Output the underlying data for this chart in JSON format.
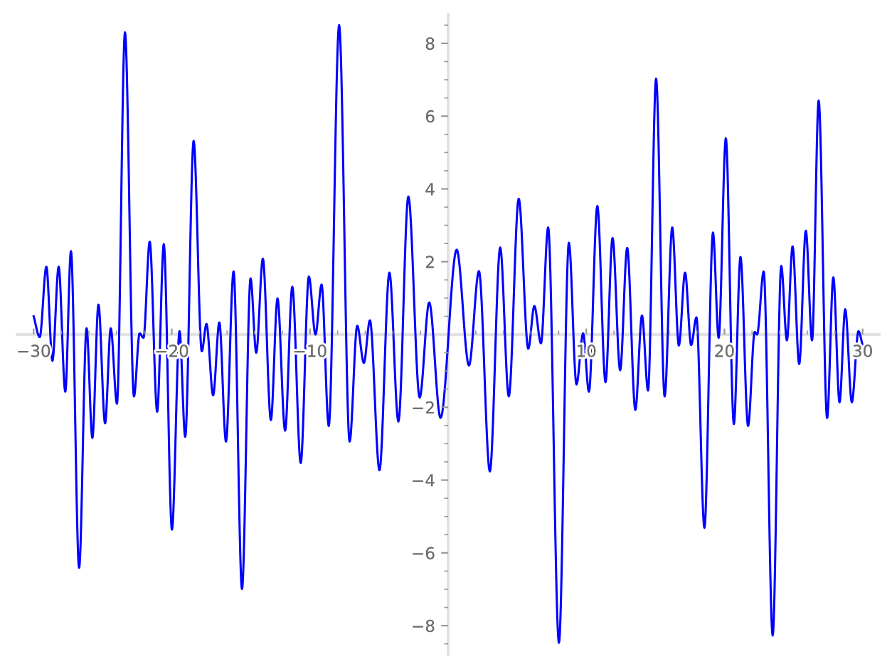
{
  "chart_data": {
    "type": "line",
    "color": "#0000ff",
    "line_style": "solid",
    "x": [
      -30,
      -29.56,
      -29.08,
      -28.64,
      -28.19,
      -27.71,
      -27.3,
      -26.71,
      -26.17,
      -25.75,
      -25.31,
      -24.83,
      -24.42,
      -23.97,
      -23.39,
      -22.74,
      -22.33,
      -22.05,
      -21.6,
      -21.06,
      -20.58,
      -19.99,
      -19.44,
      -19.03,
      -18.42,
      -17.83,
      -17.49,
      -17.01,
      -16.56,
      -16.08,
      -15.53,
      -14.92,
      -14.3,
      -13.89,
      -13.41,
      -12.83,
      -12.35,
      -11.8,
      -11.28,
      -10.67,
      -10.08,
      -9.6,
      -9.16,
      -8.64,
      -7.89,
      -7.13,
      -6.58,
      -6.1,
      -5.66,
      -4.97,
      -4.25,
      -3.6,
      -2.88,
      -2.06,
      -1.37,
      -0.55,
      0.62,
      1.51,
      2.23,
      3.02,
      3.77,
      4.39,
      5.11,
      5.8,
      6.24,
      6.72,
      7.24,
      8.02,
      8.74,
      9.29,
      9.77,
      10.19,
      10.8,
      11.39,
      11.9,
      12.45,
      12.96,
      13.55,
      14.03,
      14.47,
      15.05,
      15.67,
      16.22,
      16.7,
      17.15,
      17.59,
      17.97,
      18.55,
      19.17,
      19.58,
      20.1,
      20.68,
      21.16,
      21.71,
      22.19,
      22.36,
      22.84,
      23.49,
      24.11,
      24.52,
      24.93,
      25.41,
      25.89,
      26.34,
      26.82,
      27.43,
      27.88,
      28.33,
      28.74,
      29.22,
      29.7,
      30
    ],
    "values": [
      0.5,
      -0.07,
      1.86,
      -0.72,
      1.86,
      -1.57,
      2.29,
      -6.41,
      0.17,
      -2.84,
      0.82,
      -2.44,
      0.17,
      -1.9,
      8.3,
      -1.7,
      0.03,
      -0.09,
      2.55,
      -2.12,
      2.48,
      -5.36,
      0.09,
      -2.81,
      5.32,
      -0.46,
      0.29,
      -1.67,
      0.33,
      -2.94,
      1.73,
      -6.99,
      1.54,
      -0.5,
      2.08,
      -2.35,
      0.99,
      -2.64,
      1.31,
      -3.53,
      1.59,
      0.0,
      1.37,
      -2.51,
      8.5,
      -2.94,
      0.24,
      -0.78,
      0.39,
      -3.73,
      1.7,
      -2.39,
      3.79,
      -1.73,
      0.88,
      -2.29,
      2.33,
      -0.85,
      1.74,
      -3.76,
      2.39,
      -1.7,
      3.73,
      -0.39,
      0.78,
      -0.24,
      2.94,
      -8.47,
      2.52,
      -1.37,
      0.03,
      -1.57,
      3.53,
      -1.31,
      2.65,
      -0.98,
      2.38,
      -2.07,
      0.52,
      -1.54,
      7.03,
      -1.7,
      2.94,
      -0.3,
      1.7,
      -0.29,
      0.47,
      -5.31,
      2.8,
      -0.09,
      5.39,
      -2.46,
      2.13,
      -2.51,
      0.07,
      0.0,
      1.73,
      -8.27,
      1.88,
      -0.16,
      2.42,
      -0.81,
      2.85,
      -0.16,
      6.43,
      -2.29,
      1.57,
      -1.86,
      0.69,
      -1.86,
      0.09,
      -0.29
    ],
    "xlim": [
      -31.2,
      31.2
    ],
    "ylim": [
      -8.8,
      8.8
    ],
    "xticks": [
      {
        "value": -30,
        "label": "−30"
      },
      {
        "value": -28,
        "label": null
      },
      {
        "value": -26,
        "label": null
      },
      {
        "value": -24,
        "label": null
      },
      {
        "value": -22,
        "label": null
      },
      {
        "value": -20,
        "label": "−20"
      },
      {
        "value": -18,
        "label": null
      },
      {
        "value": -16,
        "label": null
      },
      {
        "value": -14,
        "label": null
      },
      {
        "value": -12,
        "label": null
      },
      {
        "value": -10,
        "label": "−10"
      },
      {
        "value": -8,
        "label": null
      },
      {
        "value": -6,
        "label": null
      },
      {
        "value": -4,
        "label": null
      },
      {
        "value": -2,
        "label": null
      },
      {
        "value": 2,
        "label": null
      },
      {
        "value": 4,
        "label": null
      },
      {
        "value": 6,
        "label": null
      },
      {
        "value": 8,
        "label": null
      },
      10,
      {
        "value": 12,
        "label": null
      },
      {
        "value": 14,
        "label": null
      },
      {
        "value": 16,
        "label": null
      },
      {
        "value": 18,
        "label": null
      },
      20,
      {
        "value": 22,
        "label": null
      },
      {
        "value": 24,
        "label": null
      },
      {
        "value": 26,
        "label": null
      },
      {
        "value": 28,
        "label": null
      },
      30
    ],
    "yticks": [
      {
        "value": -8.5,
        "label": null
      },
      {
        "value": -8,
        "label": "−8"
      },
      {
        "value": -7.5,
        "label": null
      },
      {
        "value": -7,
        "label": null
      },
      {
        "value": -6.5,
        "label": null
      },
      {
        "value": -6,
        "label": "−6"
      },
      {
        "value": -5.5,
        "label": null
      },
      {
        "value": -5,
        "label": null
      },
      {
        "value": -4.5,
        "label": null
      },
      {
        "value": -4,
        "label": "−4"
      },
      {
        "value": -3.5,
        "label": null
      },
      {
        "value": -3,
        "label": null
      },
      {
        "value": -2.5,
        "label": null
      },
      {
        "value": -2,
        "label": "−2"
      },
      {
        "value": -1.5,
        "label": null
      },
      {
        "value": -1,
        "label": null
      },
      {
        "value": -0.5,
        "label": null
      },
      {
        "value": 0.5,
        "label": null
      },
      {
        "value": 1,
        "label": null
      },
      {
        "value": 1.5,
        "label": null
      },
      2,
      {
        "value": 2.5,
        "label": null
      },
      {
        "value": 3,
        "label": null
      },
      {
        "value": 3.5,
        "label": null
      },
      4,
      {
        "value": 4.5,
        "label": null
      },
      {
        "value": 5,
        "label": null
      },
      {
        "value": 5.5,
        "label": null
      },
      6,
      {
        "value": 6.5,
        "label": null
      },
      {
        "value": 7,
        "label": null
      },
      {
        "value": 7.5,
        "label": null
      },
      8,
      {
        "value": 8.5,
        "label": null
      }
    ]
  }
}
